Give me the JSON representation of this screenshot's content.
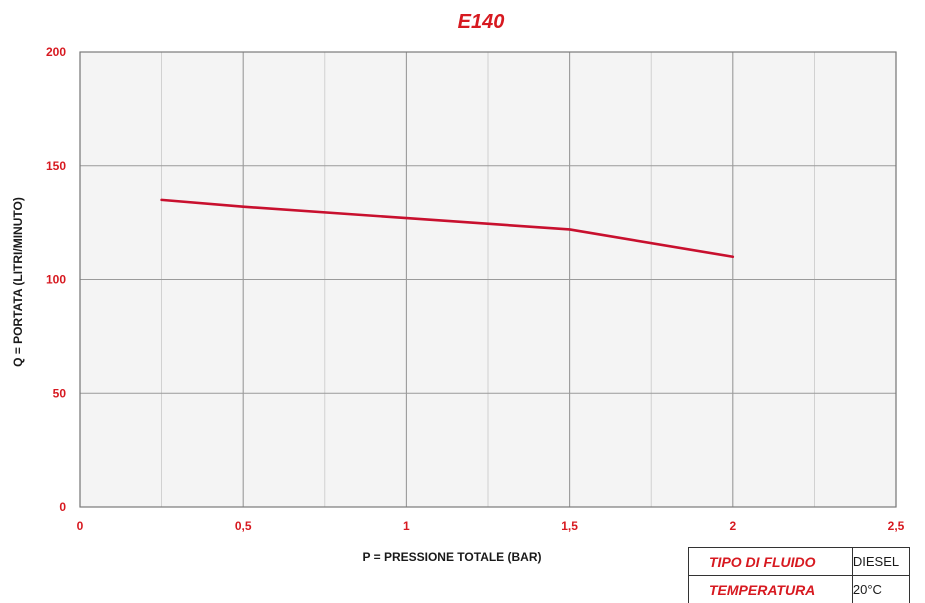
{
  "chart_data": {
    "type": "line",
    "title": "E140",
    "xlabel": "P = PRESSIONE TOTALE (BAR)",
    "ylabel": "Q = PORTATA (LITRI/MINUTO)",
    "xlim": [
      0,
      2.5
    ],
    "ylim": [
      0,
      200
    ],
    "x_ticks": [
      0,
      0.5,
      1,
      1.5,
      2,
      2.5
    ],
    "x_tick_labels": [
      "0",
      "0,5",
      "1",
      "1,5",
      "2",
      "2,5"
    ],
    "y_ticks": [
      0,
      50,
      100,
      150,
      200
    ],
    "y_tick_labels": [
      "0",
      "50",
      "100",
      "150",
      "200"
    ],
    "grid": true,
    "series": [
      {
        "x": [
          0.25,
          0.5,
          1,
          1.5,
          2
        ],
        "y": [
          135,
          132,
          127,
          122,
          110
        ]
      }
    ]
  },
  "info": {
    "fluid_label": "TIPO DI FLUIDO",
    "fluid_value": "DIESEL",
    "temp_label": "TEMPERATURA",
    "temp_value": "20°C"
  },
  "colors": {
    "accent": "#d71920",
    "line": "#c8102e",
    "grid": "#c8c8c8",
    "plot_bg": "#f4f4f4",
    "text": "#1a1a1a"
  }
}
